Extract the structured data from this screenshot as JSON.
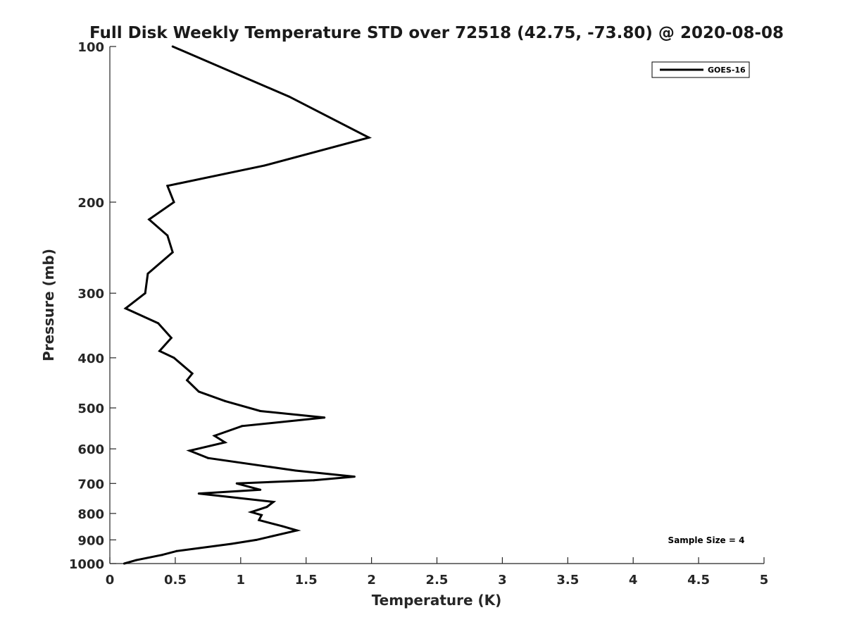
{
  "chart_data": {
    "type": "line",
    "title": "Full Disk Weekly Temperature STD over 72518 (42.75, -73.80) @ 2020-08-08",
    "xlabel": "Temperature (K)",
    "ylabel": "Pressure (mb)",
    "xlim": [
      0,
      5
    ],
    "ylim": [
      100,
      1000
    ],
    "yscale": "log",
    "y_reversed": true,
    "xticks": [
      "0",
      "0.5",
      "1",
      "1.5",
      "2",
      "2.5",
      "3",
      "3.5",
      "4",
      "4.5",
      "5"
    ],
    "xtick_values": [
      0,
      0.5,
      1,
      1.5,
      2,
      2.5,
      3,
      3.5,
      4,
      4.5,
      5
    ],
    "yticks": [
      "100",
      "200",
      "300",
      "400",
      "500",
      "600",
      "700",
      "800",
      "900",
      "1000"
    ],
    "ytick_values": [
      100,
      200,
      300,
      400,
      500,
      600,
      700,
      800,
      900,
      1000
    ],
    "legend_position": "top-right",
    "annotation": "Sample Size = 4",
    "series": [
      {
        "name": "GOES-16",
        "color": "#000000",
        "points": [
          [
            0.48,
            100
          ],
          [
            1.37,
            125
          ],
          [
            1.98,
            150
          ],
          [
            1.18,
            170
          ],
          [
            0.44,
            186
          ],
          [
            0.49,
            200
          ],
          [
            0.3,
            216
          ],
          [
            0.44,
            232
          ],
          [
            0.48,
            250
          ],
          [
            0.29,
            275
          ],
          [
            0.27,
            300
          ],
          [
            0.12,
            321
          ],
          [
            0.37,
            343
          ],
          [
            0.47,
            366
          ],
          [
            0.38,
            388
          ],
          [
            0.49,
            400
          ],
          [
            0.63,
            429
          ],
          [
            0.59,
            442
          ],
          [
            0.68,
            465
          ],
          [
            0.88,
            485
          ],
          [
            1.15,
            507
          ],
          [
            1.64,
            522
          ],
          [
            1.01,
            542
          ],
          [
            0.8,
            566
          ],
          [
            0.88,
            583
          ],
          [
            0.61,
            605
          ],
          [
            0.75,
            625
          ],
          [
            1.42,
            661
          ],
          [
            1.87,
            679
          ],
          [
            1.56,
            690
          ],
          [
            0.97,
            700
          ],
          [
            1.15,
            720
          ],
          [
            0.68,
            732
          ],
          [
            1.25,
            760
          ],
          [
            1.2,
            777
          ],
          [
            1.08,
            795
          ],
          [
            1.16,
            806
          ],
          [
            1.14,
            824
          ],
          [
            1.32,
            847
          ],
          [
            1.43,
            863
          ],
          [
            1.12,
            900
          ],
          [
            0.93,
            916
          ],
          [
            0.51,
            946
          ],
          [
            0.4,
            962
          ],
          [
            0.2,
            985
          ],
          [
            0.11,
            1000
          ]
        ]
      }
    ]
  }
}
